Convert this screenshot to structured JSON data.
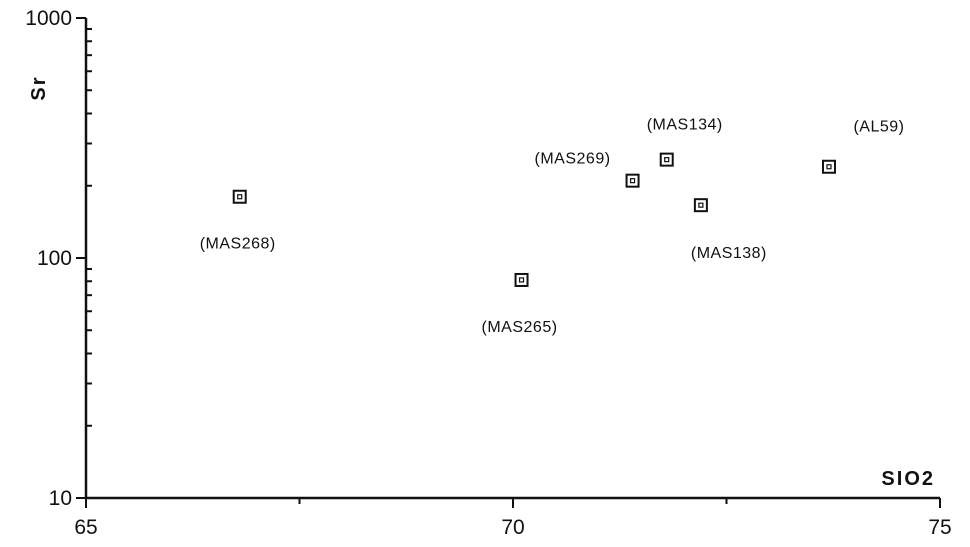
{
  "chart_data": {
    "type": "scatter",
    "title": "",
    "xlabel": "SIO2",
    "ylabel": "Sr",
    "xlim": [
      65,
      75
    ],
    "ylim": [
      10,
      1000
    ],
    "yscale": "log",
    "grid": false,
    "x_ticks": [
      {
        "value": 65,
        "label": "65"
      },
      {
        "value": 70,
        "label": "70"
      },
      {
        "value": 75,
        "label": "75"
      }
    ],
    "y_ticks": [
      {
        "value": 10,
        "label": "10"
      },
      {
        "value": 100,
        "label": "100"
      },
      {
        "value": 1000,
        "label": "1000"
      }
    ],
    "points": [
      {
        "label": "(MAS268)",
        "x": 66.8,
        "y": 180,
        "label_pos": "below"
      },
      {
        "label": "(MAS265)",
        "x": 70.1,
        "y": 81,
        "label_pos": "below"
      },
      {
        "label": "(MAS269)",
        "x": 71.4,
        "y": 210,
        "label_pos": "left"
      },
      {
        "label": "(MAS134)",
        "x": 71.8,
        "y": 257,
        "label_pos": "above"
      },
      {
        "label": "(MAS138)",
        "x": 72.2,
        "y": 166,
        "label_pos": "below-right"
      },
      {
        "label": "(AL59)",
        "x": 73.7,
        "y": 240,
        "label_pos": "above-right"
      }
    ]
  }
}
